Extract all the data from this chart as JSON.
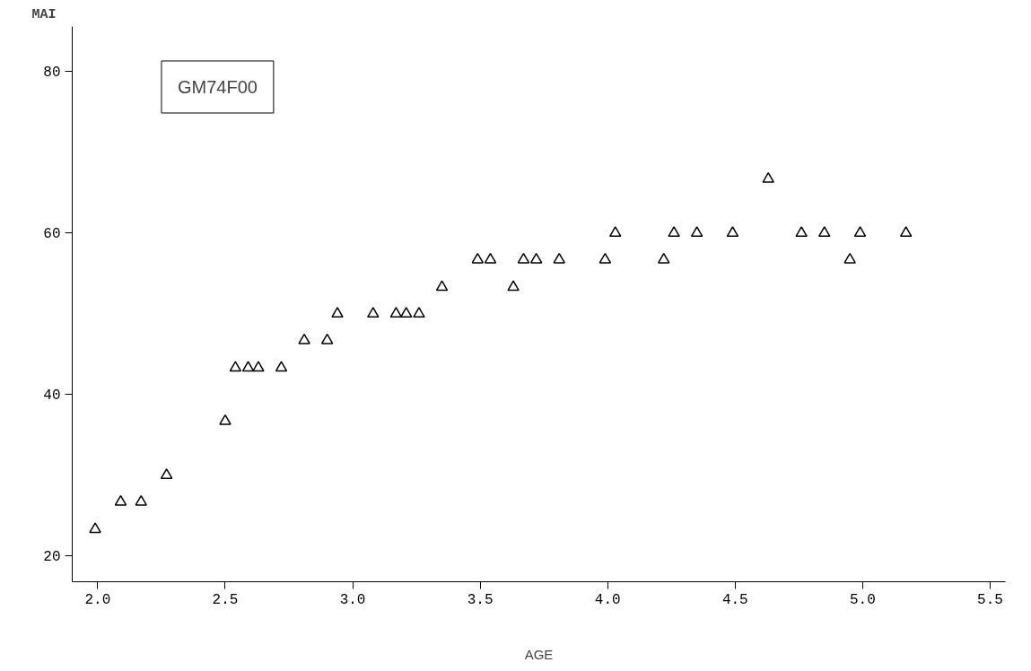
{
  "chart_data": {
    "type": "scatter",
    "xlabel": "AGE",
    "ylabel": "MAI",
    "annotations": [
      "GM74F00"
    ],
    "marker": "triangle",
    "grid": false,
    "xlim": [
      1.9,
      5.56
    ],
    "ylim": [
      16.8,
      85.6
    ],
    "xticks": [
      {
        "value": 2,
        "label": "2.0"
      },
      {
        "value": 2.5,
        "label": "2.5"
      },
      {
        "value": 3,
        "label": "3.0"
      },
      {
        "value": 3.5,
        "label": "3.5"
      },
      {
        "value": 4,
        "label": "4.0"
      },
      {
        "value": 4.5,
        "label": "4.5"
      },
      {
        "value": 5,
        "label": "5.0"
      },
      {
        "value": 5.5,
        "label": "5.5"
      }
    ],
    "yticks": [
      20,
      40,
      60,
      80
    ],
    "series": [
      {
        "color": "#000000",
        "x": [
          1.99,
          2.09,
          2.17,
          2.27,
          2.5,
          2.54,
          2.59,
          2.63,
          2.72,
          2.81,
          2.9,
          2.94,
          3.08,
          3.17,
          3.21,
          3.26,
          3.35,
          3.49,
          3.54,
          3.63,
          3.67,
          3.72,
          3.81,
          3.99,
          4.03,
          4.22,
          4.26,
          4.35,
          4.49,
          4.63,
          4.76,
          4.85,
          4.95,
          4.99,
          5.17
        ],
        "values": [
          23.3,
          26.7,
          26.7,
          30,
          36.7,
          43.3,
          43.3,
          43.3,
          43.3,
          46.7,
          46.7,
          50,
          50,
          50,
          50,
          50,
          53.3,
          56.7,
          56.7,
          53.3,
          56.7,
          56.7,
          56.7,
          56.7,
          60,
          56.7,
          60,
          60,
          60,
          66.7,
          60,
          60,
          56.7,
          60,
          60
        ]
      }
    ]
  }
}
